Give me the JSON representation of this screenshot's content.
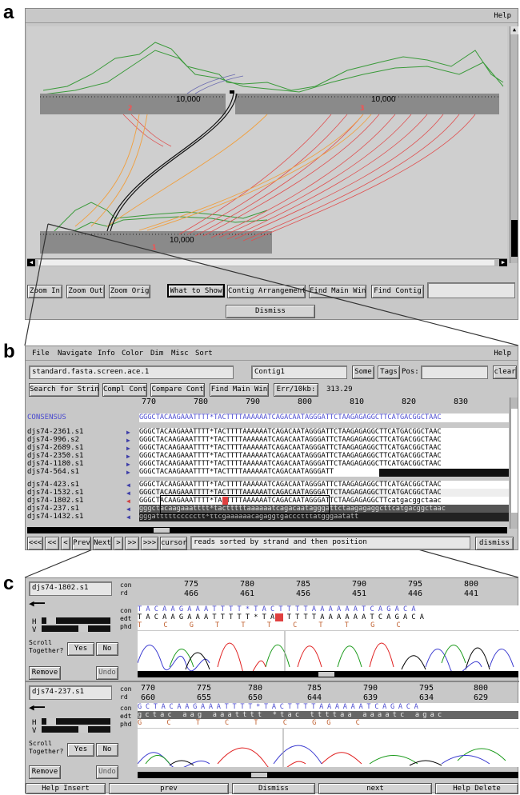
{
  "labels": {
    "a": "a",
    "b": "b",
    "c": "c"
  },
  "panelA": {
    "help": "Help",
    "contig2_ruler": "10,000",
    "contig2_num": "2",
    "contig3_ruler": "10,000",
    "contig3_num": "3",
    "contig1_ruler": "10,000",
    "contig1_num": "1",
    "buttons": {
      "zoom_in": "Zoom In",
      "zoom_out": "Zoom Out",
      "zoom_orig": "Zoom Orig",
      "what_to_show": "What to Show",
      "contig_arrangement": "Contig Arrangement",
      "find_main_win": "Find Main Win",
      "find_contig": "Find Contig",
      "dismiss": "Dismiss"
    },
    "find_contig_value": ""
  },
  "panelB": {
    "menu": [
      "File",
      "Navigate",
      "Info",
      "Color",
      "Dim",
      "Misc",
      "Sort"
    ],
    "help": "Help",
    "filename": "standard.fasta.screen.ace.1",
    "contig": "Contig1",
    "some": "Some",
    "tags": "Tags",
    "pos_label": "Pos:",
    "pos_value": "",
    "clear": "clear",
    "buttons": {
      "search": "Search for String",
      "compl": "Compl Cont",
      "compare": "Compare Cont",
      "find_main": "Find Main Win",
      "err": "Err/10kb:"
    },
    "err_value": "313.29",
    "ruler": [
      "770",
      "780",
      "790",
      "800",
      "810",
      "820",
      "830"
    ],
    "consensus_label": "CONSENSUS",
    "consensus_seq": "GGGCTACAAGAAATTTT*TACTTTTAAAAAATCAGACAATAGGGATTCTAAGAGAGGCTTCATGACGGCTAAC",
    "reads": [
      {
        "name": "djs74-2361.s1",
        "seq": "GGGCTACAAGAAATTTT*TACTTTTAAAAAATCAGACAATAGGGATTCTAAGAGAGGCTTCATGACGGCTAAC",
        "dir": "fwd"
      },
      {
        "name": "djs74-996.s2",
        "seq": "GGGCTACAAGAAATTTT*TACTTTTAAAAAATCAGACAATAGGGATTCTAAGAGAGGCTTCATGACGGCTAAC",
        "dir": "fwd"
      },
      {
        "name": "djs74-2689.s1",
        "seq": "GGGCTACAAGAAATTTT*TACTTTTAAAAAATCAGACAATAGGGATTCTAAGAGAGGCTTCATGACGGCTAAC",
        "dir": "fwd"
      },
      {
        "name": "djs74-2350.s1",
        "seq": "GGGCTACAAGAAATTTT*TACTTTTAAAAAATCAGACAATAGGGATTCTAAGAGAGGCTTCATGACGGCTAAC",
        "dir": "fwd"
      },
      {
        "name": "djs74-1180.s1",
        "seq": "GGGCTACAAGAAATTTT*TACTTTTAAAAAATCAGACAATAGGGATTCTAAGAGAGGCTTCATGACGGCTAAC",
        "dir": "fwd"
      },
      {
        "name": "djs74-564.s1",
        "seq": "GGGCTACAAGAAATTTT*TACTTTTAAAAAATCAGACAATAGGGATT",
        "dir": "fwd"
      },
      {
        "name": "djs74-423.s1",
        "seq": "GGGCTACAAGAAATTTT*TACTTTTAAAAAATCAGACAATAGGGATTCTAAGAGAGGCTTCATGACGGCTAAC",
        "dir": "rev"
      },
      {
        "name": "djs74-1532.s1",
        "seq": "GGGCTACAAGAAATTTT*TACTTTTAAAAAATCAGACAATAGGGATTCTAAGAGAGGCTTCATGACGGCTAAC",
        "dir": "rev"
      },
      {
        "name": "djs74-1802.s1",
        "seq": "GGGCTACAAGAAATTTT*TACTTTTAAAAAATCAGACAATAGGGATTCTAAGAGAGGCTTcatgacggctaac",
        "dir": "rev"
      },
      {
        "name": "djs74-237.s1",
        "seq": "gggctacaagaaatttt*tactttttaaaaaatcagacaatagggattctaagagaggcttcatgacggctaac",
        "dir": "rev"
      },
      {
        "name": "djs74-1432.s1",
        "seq": "gggatttttccccctt*ttcgaaaaaacagaggtgaccctttatgggaatatt",
        "dir": "rev"
      }
    ],
    "nav": [
      "<<<",
      "<<",
      "<",
      "Prev",
      "Next",
      ">",
      ">>",
      ">>>"
    ],
    "cursor": "cursor",
    "status": "reads sorted by strand and then position",
    "dismiss": "dismiss"
  },
  "panelC": {
    "trace1": {
      "read": "djs74-1802.s1",
      "con_label": "con",
      "rd_label": "rd",
      "edt_label": "edt",
      "phd_label": "phd",
      "con_pos": [
        "775",
        "780",
        "785",
        "790",
        "795",
        "800"
      ],
      "rd_pos": [
        "466",
        "461",
        "456",
        "451",
        "446",
        "441"
      ],
      "con_seq": "TACAAGAAATTTT*TACTTTTAAAAAATCAGACA",
      "edt_seq": "TACAAGAAATTTTT*TACTTTTAAAAAATCAGACA",
      "phd_seq": "T C G T T T C T T G C",
      "h": "H",
      "v": "V",
      "scroll": "Scroll Together?",
      "yes": "Yes",
      "no": "No",
      "remove": "Remove",
      "undo": "Undo"
    },
    "trace2": {
      "read": "djs74-237.s1",
      "con_label": "con",
      "rd_label": "rd",
      "edt_label": "edt",
      "phd_label": "phd",
      "con_pos": [
        "770",
        "775",
        "780",
        "785",
        "790",
        "795",
        "800"
      ],
      "rd_pos": [
        "660",
        "655",
        "650",
        "644",
        "639",
        "634",
        "629"
      ],
      "con_seq": "GCTACAAGAAATTTT*TACTTTTAAAAAATCAGACA",
      "edt_seq": "gctac aag aaatttt *tac ttttaa aaaatc agac",
      "phd_seq": "G C T C T C GG C",
      "h": "H",
      "v": "V",
      "scroll": "Scroll Together?",
      "yes": "Yes",
      "no": "No",
      "remove": "Remove",
      "undo": "Undo"
    },
    "bottom": {
      "help_insert": "Help Insert",
      "prev": "prev",
      "dismiss": "Dismiss",
      "next": "next",
      "help_delete": "Help Delete"
    }
  }
}
